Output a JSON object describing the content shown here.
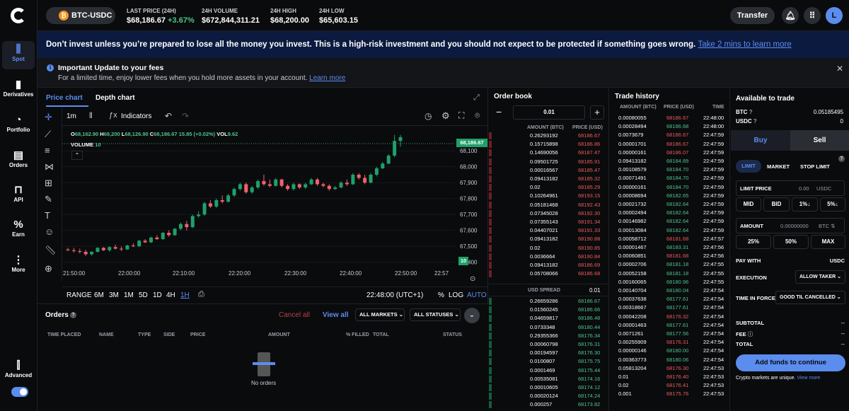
{
  "sidebar": {
    "items": [
      {
        "label": "Spot",
        "icon": "candles-icon"
      },
      {
        "label": "Derivatives",
        "icon": "bars-icon"
      },
      {
        "label": "Portfolio",
        "icon": "pie-icon"
      },
      {
        "label": "Orders",
        "icon": "document-icon"
      },
      {
        "label": "API",
        "icon": "api-icon"
      },
      {
        "label": "Earn",
        "icon": "percent-icon"
      },
      {
        "label": "More",
        "icon": "more-icon"
      }
    ],
    "advanced": "Advanced"
  },
  "top": {
    "pair": "BTC-USDC",
    "stats": [
      {
        "label": "LAST PRICE (24H)",
        "value": "$68,186.67",
        "change": "+3.67%"
      },
      {
        "label": "24H VOLUME",
        "value": "$672,844,311.21"
      },
      {
        "label": "24H HIGH",
        "value": "$68,200.00"
      },
      {
        "label": "24H LOW",
        "value": "$65,603.15"
      }
    ],
    "transfer": "Transfer",
    "avatar": "L"
  },
  "banner": {
    "text": "Don’t invest unless you’re prepared to lose all the money you invest. This is a high-risk investment and you should not expect to be protected if something goes wrong.",
    "link": "Take 2 mins to learn more"
  },
  "notice": {
    "title": "Important Update to your fees",
    "text": "For a limited time, enjoy lower fees when you hold more assets in your account.",
    "link": "Learn more"
  },
  "chart": {
    "tabs": [
      "Price chart",
      "Depth chart"
    ],
    "interval": "1m",
    "indicators": "Indicators",
    "ohlc": {
      "o": "68,162.90",
      "h": "68,200",
      "l": "68,126.90",
      "c": "68,186.67",
      "chg": "15.85 (+0.02%)",
      "vol": "9.62"
    },
    "volume_label": "VOLUME",
    "volume_val": "10",
    "last_price_tag": "68,186.67",
    "volume_tag": "10",
    "range_label": "RANGE",
    "ranges": [
      "6M",
      "3M",
      "1M",
      "5D",
      "1D",
      "4H",
      "1H"
    ],
    "clock": "22:48:00 (UTC+1)",
    "pct": "%",
    "log": "LOG",
    "auto": "AUTO"
  },
  "chart_data": {
    "type": "candlestick",
    "ylabel": "",
    "xlabel": "",
    "y_ticks": [
      68100,
      68000,
      67900,
      67800,
      67700,
      67600,
      67500,
      67400
    ],
    "x_ticks": [
      "21:50:00",
      "22:00:00",
      "22:10:00",
      "22:20:00",
      "22:30:00",
      "22:40:00",
      "22:50:00",
      "22:57"
    ],
    "ylim": [
      67385,
      68230
    ],
    "candles": [
      [
        67480,
        67490,
        67470,
        67475
      ],
      [
        67475,
        67490,
        67460,
        67470
      ],
      [
        67470,
        67485,
        67455,
        67465
      ],
      [
        67465,
        67478,
        67440,
        67450
      ],
      [
        67450,
        67470,
        67440,
        67465
      ],
      [
        67465,
        67495,
        67460,
        67490
      ],
      [
        67490,
        67495,
        67470,
        67475
      ],
      [
        67475,
        67500,
        67465,
        67495
      ],
      [
        67495,
        67510,
        67480,
        67485
      ],
      [
        67485,
        67500,
        67470,
        67480
      ],
      [
        67480,
        67510,
        67478,
        67505
      ],
      [
        67505,
        67520,
        67495,
        67500
      ],
      [
        67500,
        67540,
        67495,
        67535
      ],
      [
        67535,
        67545,
        67520,
        67525
      ],
      [
        67525,
        67560,
        67520,
        67555
      ],
      [
        67555,
        67570,
        67540,
        67545
      ],
      [
        67545,
        67590,
        67540,
        67585
      ],
      [
        67585,
        67600,
        67560,
        67570
      ],
      [
        67570,
        67615,
        67565,
        67610
      ],
      [
        67610,
        67650,
        67600,
        67640
      ],
      [
        67640,
        67660,
        67600,
        67620
      ],
      [
        67620,
        67700,
        67615,
        67690
      ],
      [
        67690,
        67720,
        67680,
        67700
      ],
      [
        67700,
        67780,
        67690,
        67770
      ],
      [
        67770,
        67790,
        67740,
        67750
      ],
      [
        67750,
        67800,
        67740,
        67790
      ],
      [
        67790,
        67820,
        67770,
        67780
      ],
      [
        67780,
        67830,
        67775,
        67820
      ],
      [
        67820,
        67870,
        67810,
        67860
      ],
      [
        67860,
        67900,
        67850,
        67890
      ],
      [
        67890,
        67900,
        67830,
        67840
      ],
      [
        67840,
        67880,
        67830,
        67870
      ],
      [
        67870,
        67920,
        67860,
        67910
      ],
      [
        67910,
        67950,
        67880,
        67890
      ],
      [
        67890,
        67920,
        67870,
        67880
      ],
      [
        67880,
        67930,
        67875,
        67920
      ],
      [
        67920,
        67925,
        67870,
        67880
      ],
      [
        67880,
        67890,
        67850,
        67860
      ],
      [
        67860,
        67900,
        67850,
        67890
      ],
      [
        67890,
        67895,
        67860,
        67870
      ],
      [
        67870,
        67900,
        67860,
        67890
      ],
      [
        67890,
        67930,
        67885,
        67920
      ],
      [
        67920,
        67930,
        67880,
        67890
      ],
      [
        67890,
        67900,
        67870,
        67880
      ],
      [
        67880,
        67890,
        67850,
        67860
      ],
      [
        67860,
        67880,
        67855,
        67870
      ],
      [
        67870,
        67910,
        67865,
        67900
      ],
      [
        67900,
        67920,
        67880,
        67890
      ],
      [
        67890,
        67960,
        67885,
        67950
      ],
      [
        67950,
        67960,
        67920,
        67930
      ],
      [
        67930,
        67950,
        67890,
        67900
      ],
      [
        67900,
        67960,
        67895,
        67950
      ],
      [
        67950,
        68000,
        67940,
        67990
      ],
      [
        67990,
        68030,
        67985,
        68020
      ],
      [
        68020,
        68080,
        68015,
        68070
      ],
      [
        68070,
        68200,
        68060,
        68162
      ],
      [
        68162,
        68200,
        68126,
        68186
      ]
    ]
  },
  "orders": {
    "title": "Orders",
    "cancel_all": "Cancel all",
    "view_all": "View all",
    "all_markets": "ALL MARKETS",
    "all_statuses": "ALL STATUSES",
    "headers": [
      "TIME PLACED",
      "NAME",
      "TYPE",
      "SIDE",
      "PRICE",
      "AMOUNT",
      "% FILLED",
      "TOTAL",
      "STATUS"
    ],
    "empty": "No orders"
  },
  "orderbook": {
    "title": "Order book",
    "step": "0.01",
    "hdr_amount": "AMOUNT (BTC)",
    "hdr_price": "PRICE (USD)",
    "spread_label": "USD SPREAD",
    "spread": "0.01",
    "asks": [
      [
        "0.26293192",
        "68186.67"
      ],
      [
        "0.15715898",
        "68186.86"
      ],
      [
        "0.14690056",
        "68187.47"
      ],
      [
        "0.09501725",
        "68185.91"
      ],
      [
        "0.00016567",
        "68185.47"
      ],
      [
        "0.09413182",
        "68185.32"
      ],
      [
        "0.02",
        "68185.29"
      ],
      [
        "0.10264961",
        "68193.15"
      ],
      [
        "0.05181468",
        "68192.43"
      ],
      [
        "0.07345028",
        "68192.30"
      ],
      [
        "0.07355143",
        "68191.34"
      ],
      [
        "0.04407021",
        "68191.33"
      ],
      [
        "0.09413182",
        "68190.88"
      ],
      [
        "0.02",
        "68190.85"
      ],
      [
        "0.0036664",
        "68190.84"
      ],
      [
        "0.09413182",
        "68186.69"
      ],
      [
        "0.05708066",
        "68186.68"
      ]
    ],
    "bids": [
      [
        "0.26659286",
        "68186.67"
      ],
      [
        "0.01560245",
        "68186.66"
      ],
      [
        "0.04659817",
        "68186.48"
      ],
      [
        "0.0733348",
        "68180.44"
      ],
      [
        "0.29355366",
        "68176.34"
      ],
      [
        "0.00060798",
        "68176.31"
      ],
      [
        "0.00194597",
        "68176.30"
      ],
      [
        "0.0100807",
        "68175.75"
      ],
      [
        "0.0001469",
        "68175.44"
      ],
      [
        "0.00535081",
        "68174.16"
      ],
      [
        "0.00010605",
        "68174.12"
      ],
      [
        "0.00020124",
        "68174.24"
      ],
      [
        "0.000257",
        "68173.82"
      ]
    ]
  },
  "tradehistory": {
    "title": "Trade history",
    "hdr_amount": "AMOUNT (BTC)",
    "hdr_price": "PRICE (USD)",
    "hdr_time": "TIME",
    "rows": [
      [
        "0.00080055",
        "68186.67",
        "22:48:00",
        "a"
      ],
      [
        "0.00028494",
        "68186.68",
        "22:48:00",
        "b"
      ],
      [
        "0.0073679",
        "68186.67",
        "22:47:59",
        "a"
      ],
      [
        "0.00001701",
        "68186.67",
        "22:47:59",
        "a"
      ],
      [
        "0.00000161",
        "68186.07",
        "22:47:59",
        "a"
      ],
      [
        "0.09413182",
        "68184.89",
        "22:47:59",
        "b"
      ],
      [
        "0.00108579",
        "68184.70",
        "22:47:59",
        "b"
      ],
      [
        "0.00071491",
        "68184.70",
        "22:47:59",
        "b"
      ],
      [
        "0.00000161",
        "68184.70",
        "22:47:59",
        "b"
      ],
      [
        "0.00008694",
        "68182.65",
        "22:47:59",
        "b"
      ],
      [
        "0.00021732",
        "68182.64",
        "22:47:59",
        "b"
      ],
      [
        "0.00002494",
        "68182.64",
        "22:47:59",
        "b"
      ],
      [
        "0.00146982",
        "68182.64",
        "22:47:59",
        "b"
      ],
      [
        "0.00013084",
        "68182.64",
        "22:47:59",
        "b"
      ],
      [
        "0.00058712",
        "68181.68",
        "22:47:57",
        "a"
      ],
      [
        "0.00001467",
        "68183.31",
        "22:47:56",
        "b"
      ],
      [
        "0.00060851",
        "68181.68",
        "22:47:56",
        "a"
      ],
      [
        "0.00002706",
        "68181.18",
        "22:47:55",
        "b"
      ],
      [
        "0.00052158",
        "68181.18",
        "22:47:55",
        "b"
      ],
      [
        "0.00160065",
        "68180.96",
        "22:47:55",
        "b"
      ],
      [
        "0.00140704",
        "68180.04",
        "22:47:54",
        "b"
      ],
      [
        "0.00037638",
        "68177.61",
        "22:47:54",
        "b"
      ],
      [
        "0.00318667",
        "68177.61",
        "22:47:54",
        "b"
      ],
      [
        "0.00042208",
        "68176.32",
        "22:47:54",
        "a"
      ],
      [
        "0.00001463",
        "68177.61",
        "22:47:54",
        "b"
      ],
      [
        "0.0071261",
        "68177.56",
        "22:47:54",
        "b"
      ],
      [
        "0.00255909",
        "68176.31",
        "22:47:54",
        "a"
      ],
      [
        "0.00000146",
        "68180.00",
        "22:47:54",
        "b"
      ],
      [
        "0.00363773",
        "68180.06",
        "22:47:54",
        "b"
      ],
      [
        "0.05813204",
        "68176.30",
        "22:47:53",
        "a"
      ],
      [
        "0.01",
        "68176.40",
        "22:47:53",
        "a"
      ],
      [
        "0.02",
        "68176.41",
        "22:47:53",
        "a"
      ],
      [
        "0.001",
        "68175.76",
        "22:47:53",
        "a"
      ]
    ]
  },
  "trade": {
    "available": "Available to trade",
    "btc_label": "BTC",
    "btc_val": "0.05185495",
    "usdc_label": "USDC",
    "usdc_val": "0",
    "buy": "Buy",
    "sell": "Sell",
    "types": [
      "LIMIT",
      "MARKET",
      "STOP LIMIT"
    ],
    "limit_price": "LIMIT PRICE",
    "limit_val": "0.00",
    "limit_unit": "USDC",
    "quick": [
      "MID",
      "BID",
      "1%↓",
      "5%↓"
    ],
    "amount": "AMOUNT",
    "amount_val": "0.00000000",
    "amount_unit": "BTC ⇅",
    "pcts": [
      "25%",
      "50%",
      "MAX"
    ],
    "pay_with": "PAY WITH",
    "pay_val": "USDC",
    "execution": "EXECUTION",
    "exec_val": "ALLOW TAKER",
    "tif": "TIME IN FORCE",
    "tif_val": "GOOD TIL CANCELLED",
    "subtotal": "SUBTOTAL",
    "fee": "FEE",
    "total": "TOTAL",
    "dash": "--",
    "add_funds": "Add funds to continue",
    "footer": "Crypto markets are unique.",
    "footer_link": "View more"
  },
  "colors": {
    "green": "#1fa06a",
    "red": "#f0616d",
    "accent": "#5b8def"
  }
}
